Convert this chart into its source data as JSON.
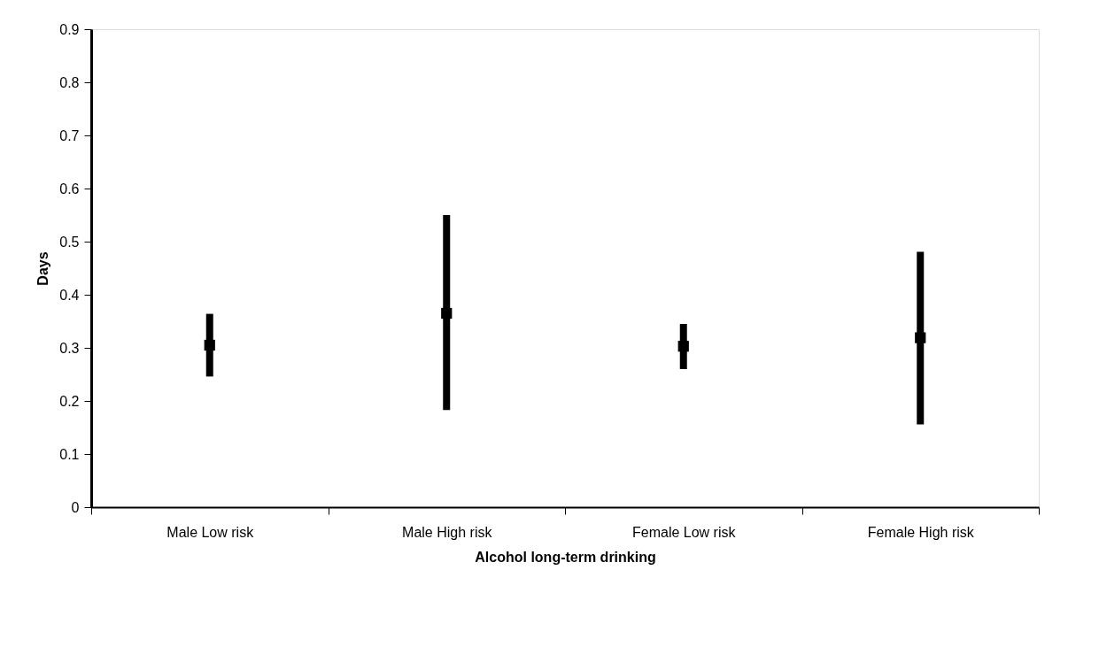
{
  "chart_data": {
    "type": "scatter",
    "xlabel": "Alcohol long-term drinking",
    "ylabel": "Days",
    "categories": [
      "Male Low risk",
      "Male High risk",
      "Female Low risk",
      "Female High risk"
    ],
    "series": [
      {
        "color": "#000000",
        "values": [
          0.305,
          0.365,
          0.303,
          0.319
        ],
        "errors": [
          [
            0.246,
            0.364
          ],
          [
            0.183,
            0.55
          ],
          [
            0.26,
            0.345
          ],
          [
            0.156,
            0.481
          ]
        ]
      }
    ],
    "ylim": [
      0,
      0.9
    ],
    "yticks": [
      0,
      0.1,
      0.2,
      0.3,
      0.4,
      0.5,
      0.6,
      0.7,
      0.8,
      0.9
    ],
    "grid": false,
    "marker": "square"
  }
}
